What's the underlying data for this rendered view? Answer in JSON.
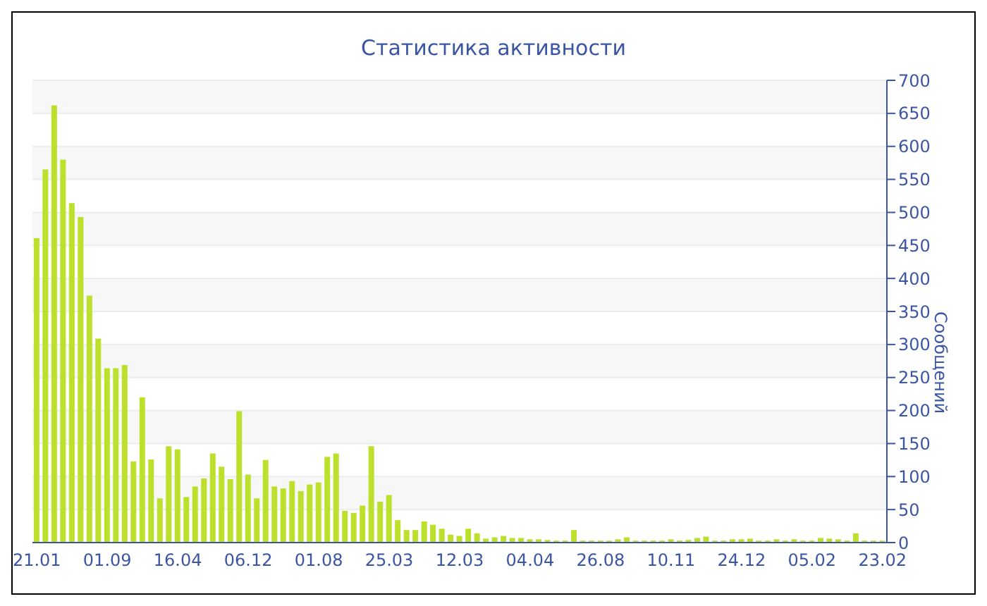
{
  "chart_data": {
    "type": "bar",
    "title": "Статистика активности",
    "ylabel": "Сообщений",
    "categories": [
      "21.01",
      null,
      null,
      null,
      null,
      null,
      null,
      null,
      "01.09",
      null,
      null,
      null,
      null,
      null,
      null,
      null,
      "16.04",
      null,
      null,
      null,
      null,
      null,
      null,
      null,
      "06.12",
      null,
      null,
      null,
      null,
      null,
      null,
      null,
      "01.08",
      null,
      null,
      null,
      null,
      null,
      null,
      null,
      "25.03",
      null,
      null,
      null,
      null,
      null,
      null,
      null,
      "12.03",
      null,
      null,
      null,
      null,
      null,
      null,
      null,
      "04.04",
      null,
      null,
      null,
      null,
      null,
      null,
      null,
      "26.08",
      null,
      null,
      null,
      null,
      null,
      null,
      null,
      "10.11",
      null,
      null,
      null,
      null,
      null,
      null,
      null,
      "24.12",
      null,
      null,
      null,
      null,
      null,
      null,
      null,
      "05.02",
      null,
      null,
      null,
      null,
      null,
      null,
      null,
      "23.02"
    ],
    "values": [
      461,
      565,
      662,
      580,
      514,
      493,
      374,
      309,
      264,
      264,
      269,
      123,
      220,
      126,
      67,
      146,
      141,
      69,
      85,
      97,
      135,
      115,
      96,
      199,
      103,
      67,
      125,
      85,
      82,
      93,
      78,
      88,
      91,
      130,
      135,
      48,
      45,
      56,
      146,
      62,
      72,
      34,
      19,
      19,
      32,
      27,
      21,
      12,
      10,
      21,
      14,
      6,
      8,
      10,
      7,
      7,
      5,
      5,
      4,
      3,
      3,
      19,
      3,
      3,
      3,
      3,
      5,
      8,
      3,
      3,
      3,
      3,
      5,
      3,
      4,
      7,
      9,
      3,
      3,
      5,
      5,
      6,
      3,
      3,
      5,
      3,
      5,
      3,
      3,
      7,
      6,
      5,
      3,
      14,
      3,
      3,
      3
    ],
    "color": "#bde02c",
    "ylim": [
      0,
      700
    ],
    "yticks": [
      0,
      50,
      100,
      150,
      200,
      250,
      300,
      350,
      400,
      450,
      500,
      550,
      600,
      650,
      700
    ],
    "grid": "y"
  }
}
